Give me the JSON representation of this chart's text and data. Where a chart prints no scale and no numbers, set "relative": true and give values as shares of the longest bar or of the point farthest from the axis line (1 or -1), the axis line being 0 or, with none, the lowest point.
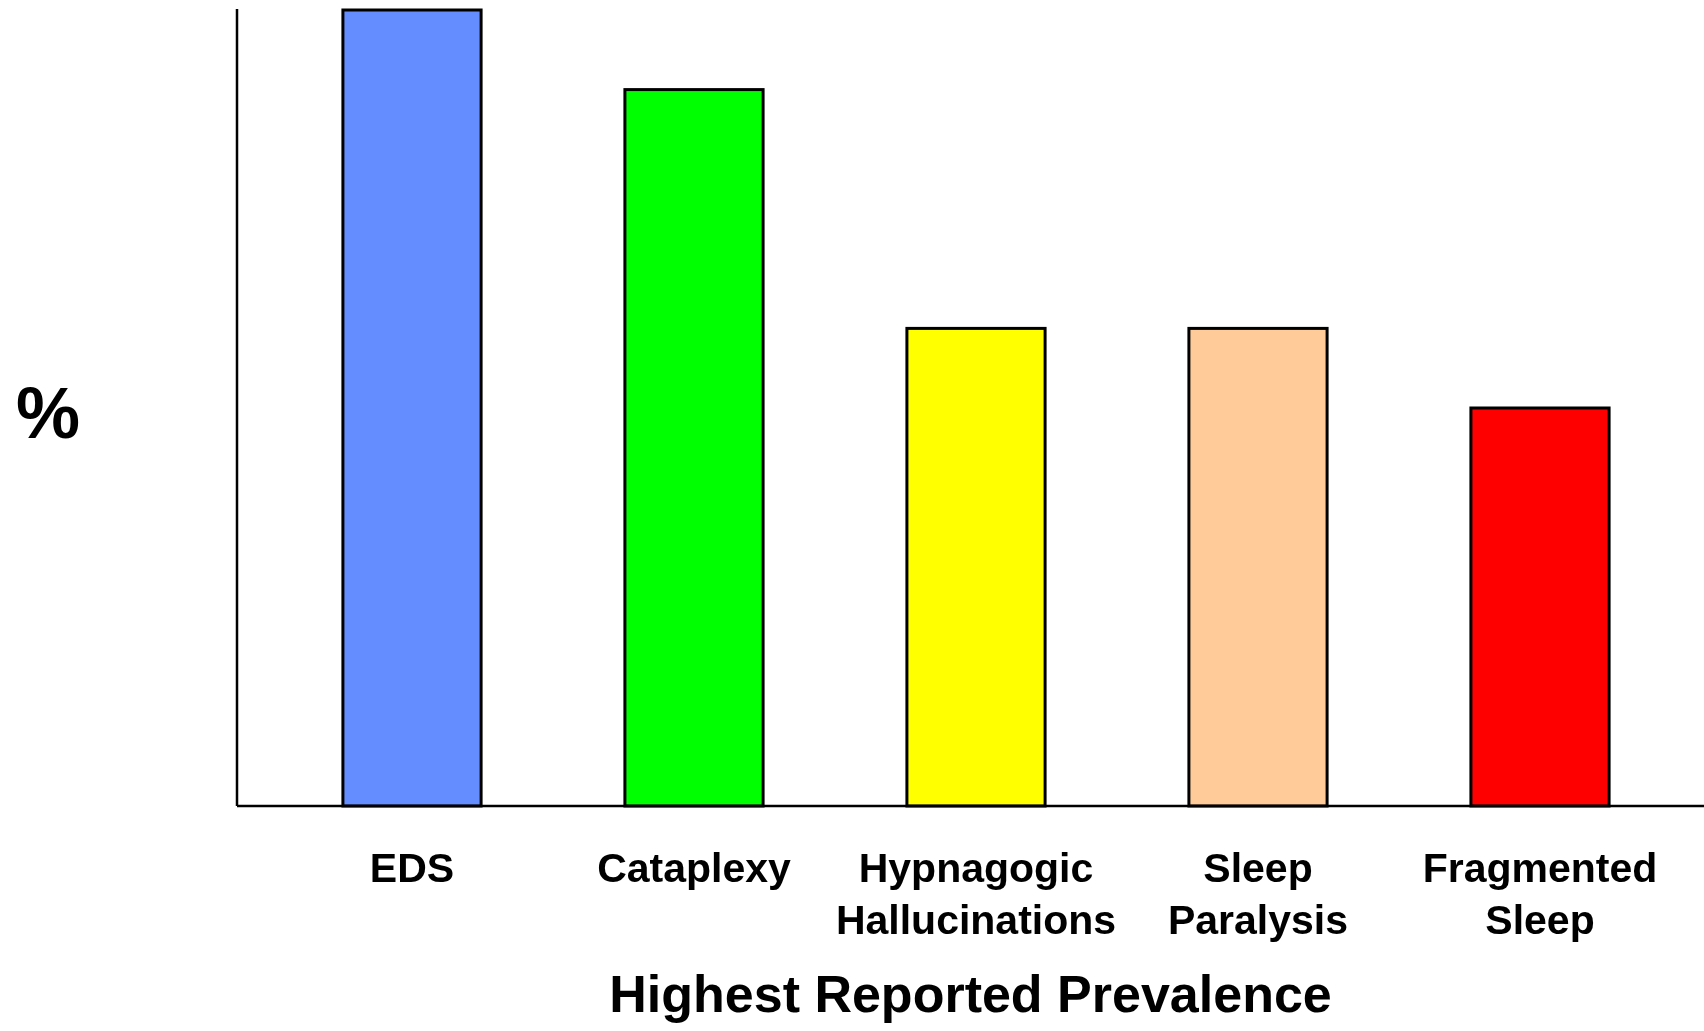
{
  "chart_data": {
    "type": "bar",
    "xlabel": "Highest Reported Prevalence",
    "ylabel": "%",
    "categories": [
      "EDS",
      "Cataplexy",
      "Hypnagogic Hallucinations",
      "Sleep Paralysis",
      "Fragmented Sleep"
    ],
    "values": [
      1,
      0.9,
      0.6,
      0.6,
      0.5
    ],
    "colors": [
      "#648eff",
      "#00ff00",
      "#ffff00",
      "#ffcc99",
      "#ff0000"
    ],
    "relative": true
  }
}
